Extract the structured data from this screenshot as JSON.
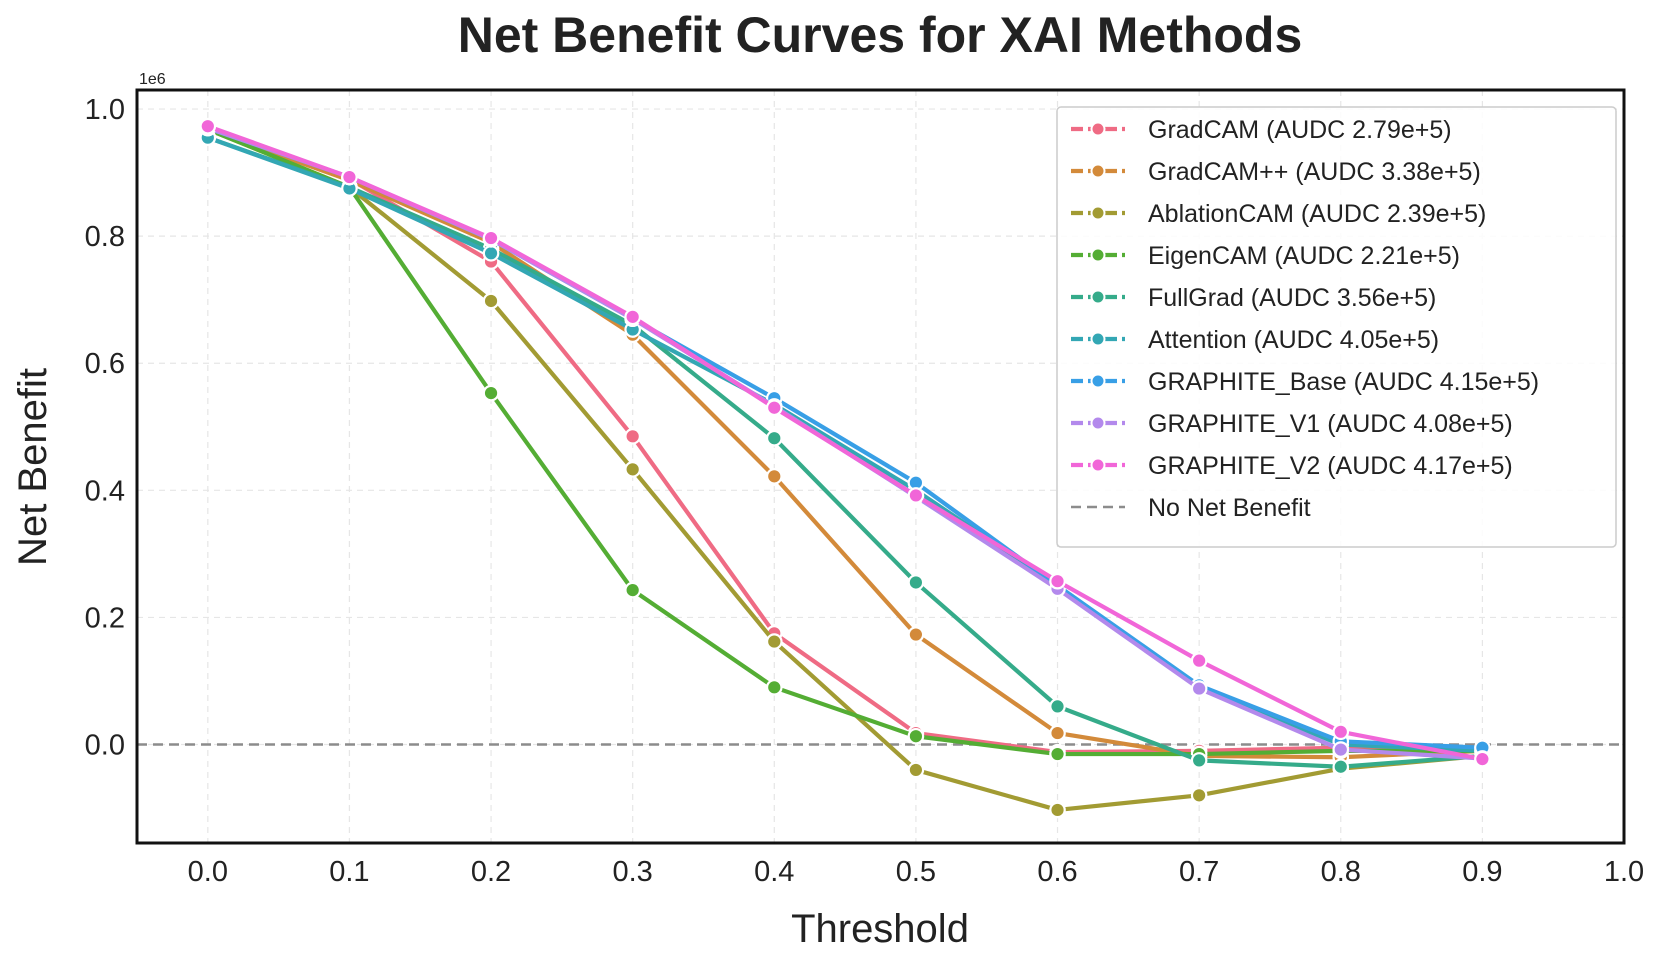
{
  "chart_data": {
    "type": "line",
    "title": "Net Benefit Curves for XAI Methods",
    "xlabel": "Threshold",
    "ylabel": "Net Benefit",
    "y_offset_label": "1e6",
    "xlim": [
      -0.05,
      1.0
    ],
    "ylim": [
      -0.155,
      1.03
    ],
    "grid": true,
    "legend_position": "top-right",
    "x_ticks": [
      0.0,
      0.1,
      0.2,
      0.3,
      0.4,
      0.5,
      0.6,
      0.7,
      0.8,
      0.9,
      1.0
    ],
    "x_tick_labels": [
      "0.0",
      "0.1",
      "0.2",
      "0.3",
      "0.4",
      "0.5",
      "0.6",
      "0.7",
      "0.8",
      "0.9",
      "1.0"
    ],
    "y_ticks": [
      0.0,
      0.2,
      0.4,
      0.6,
      0.8,
      1.0
    ],
    "y_tick_labels": [
      "0.0",
      "0.2",
      "0.4",
      "0.6",
      "0.8",
      "1.0"
    ],
    "x": [
      0.0,
      0.1,
      0.2,
      0.3,
      0.4,
      0.5,
      0.6,
      0.7,
      0.8,
      0.9
    ],
    "series": [
      {
        "name": "GradCAM (AUDC 2.79e+5)",
        "color": "#ef6b84",
        "values": [
          0.97,
          0.89,
          0.76,
          0.485,
          0.175,
          0.018,
          -0.012,
          -0.01,
          -0.005,
          -0.01
        ]
      },
      {
        "name": "GradCAM++ (AUDC 3.38e+5)",
        "color": "#d38a3a",
        "values": [
          0.968,
          0.888,
          0.79,
          0.645,
          0.422,
          0.173,
          0.018,
          -0.018,
          -0.02,
          -0.01
        ]
      },
      {
        "name": "AblationCAM (AUDC 2.39e+5)",
        "color": "#a29b33",
        "values": [
          0.968,
          0.877,
          0.698,
          0.433,
          0.162,
          -0.04,
          -0.103,
          -0.08,
          -0.038,
          -0.018
        ]
      },
      {
        "name": "EigenCAM (AUDC 2.21e+5)",
        "color": "#54ad34",
        "values": [
          0.968,
          0.877,
          0.553,
          0.243,
          0.09,
          0.013,
          -0.015,
          -0.015,
          -0.01,
          -0.01
        ]
      },
      {
        "name": "FullGrad (AUDC 3.56e+5)",
        "color": "#35ab8a",
        "values": [
          0.955,
          0.877,
          0.78,
          0.66,
          0.482,
          0.255,
          0.06,
          -0.025,
          -0.035,
          -0.018
        ]
      },
      {
        "name": "Attention (AUDC 4.05e+5)",
        "color": "#33a7b4",
        "values": [
          0.955,
          0.875,
          0.773,
          0.653,
          0.535,
          0.4,
          0.25,
          0.09,
          0.0,
          -0.01
        ]
      },
      {
        "name": "GRAPHITE_Base (AUDC 4.15e+5)",
        "color": "#389fe6",
        "values": [
          0.97,
          0.893,
          0.795,
          0.67,
          0.545,
          0.412,
          0.25,
          0.093,
          0.005,
          -0.005
        ]
      },
      {
        "name": "GRAPHITE_V1 (AUDC 4.08e+5)",
        "color": "#b389ec",
        "values": [
          0.97,
          0.893,
          0.795,
          0.67,
          0.532,
          0.39,
          0.245,
          0.088,
          -0.008,
          -0.022
        ]
      },
      {
        "name": "GRAPHITE_V2 (AUDC 4.17e+5)",
        "color": "#f166d8",
        "values": [
          0.973,
          0.893,
          0.797,
          0.673,
          0.53,
          0.392,
          0.257,
          0.132,
          0.02,
          -0.023
        ]
      }
    ],
    "reference_line": {
      "name": "No Net Benefit",
      "y": 0.0,
      "color": "#8c8c8c",
      "style": "dashed"
    }
  }
}
